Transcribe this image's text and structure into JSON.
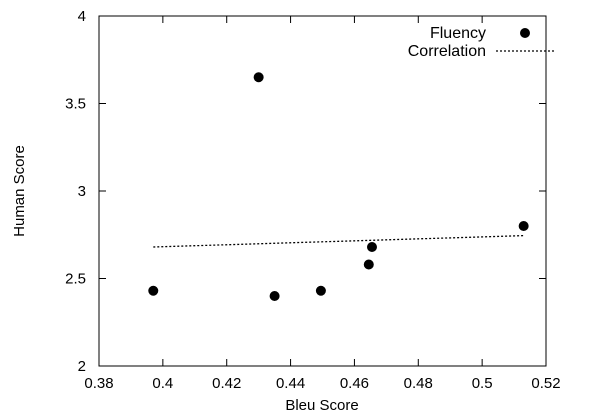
{
  "chart_data": {
    "type": "scatter",
    "title": "",
    "xlabel": "Bleu Score",
    "ylabel": "Human Score",
    "xlim": [
      0.38,
      0.52
    ],
    "ylim": [
      2,
      4
    ],
    "x_ticks": [
      "0.38",
      "0.4",
      "0.42",
      "0.44",
      "0.46",
      "0.48",
      "0.5",
      "0.52"
    ],
    "y_ticks": [
      "2",
      "2.5",
      "3",
      "3.5",
      "4"
    ],
    "grid": false,
    "legend_position": "top-right",
    "series": [
      {
        "name": "Fluency",
        "style": "points",
        "color": "#000000",
        "points": [
          [
            0.397,
            2.43
          ],
          [
            0.43,
            3.65
          ],
          [
            0.435,
            2.4
          ],
          [
            0.4495,
            2.43
          ],
          [
            0.4645,
            2.58
          ],
          [
            0.4655,
            2.68
          ],
          [
            0.513,
            2.8
          ]
        ]
      },
      {
        "name": "Correlation",
        "style": "dotted-line",
        "color": "#000000",
        "points": [
          [
            0.397,
            2.68
          ],
          [
            0.513,
            2.745
          ]
        ]
      }
    ]
  }
}
